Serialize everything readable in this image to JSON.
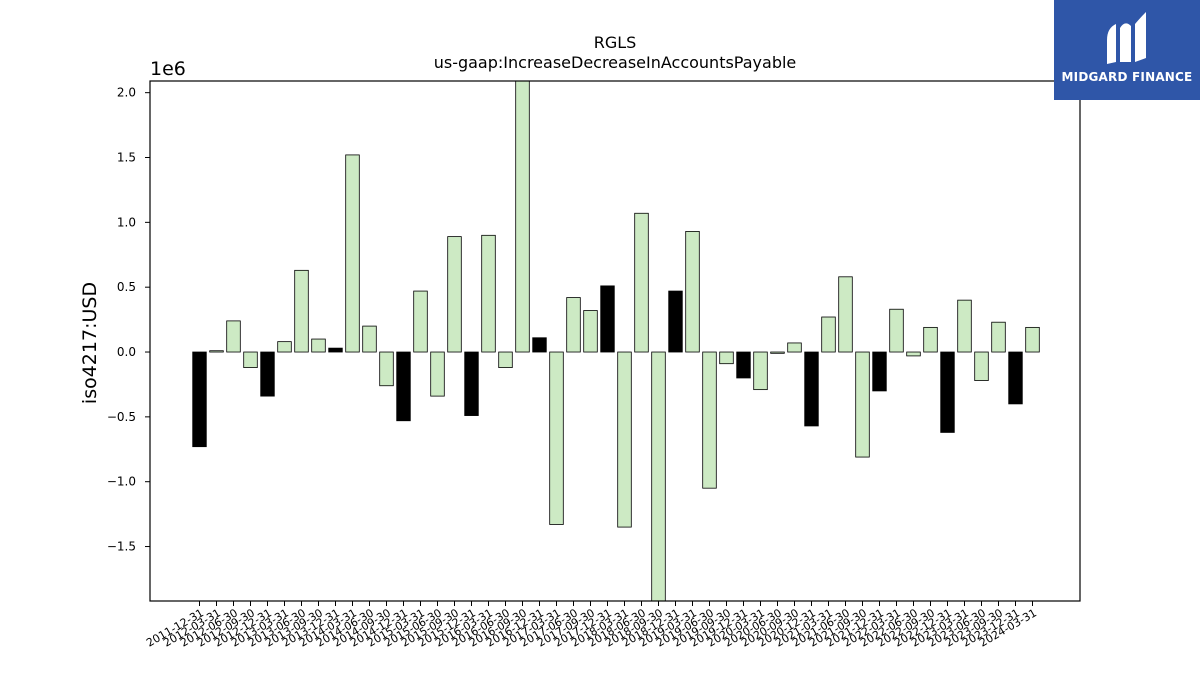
{
  "brand": {
    "name": "MIDGARD FINANCE",
    "logo_icon": "midgard-m-icon",
    "background_color": "#2f56a8"
  },
  "chart_data": {
    "type": "bar",
    "title": "RGLS",
    "subtitle": "us-gaap:IncreaseDecreaseInAccountsPayable",
    "xlabel": "",
    "ylabel": "iso4217:USD",
    "y_scale_label": "1e6",
    "y_scale": 1000000,
    "ylim": [
      -1.92,
      2.09
    ],
    "yticks": [
      -1.5,
      -1.0,
      -0.5,
      0.0,
      0.5,
      1.0,
      1.5,
      2.0
    ],
    "ytick_labels": [
      "−1.5",
      "−1.0",
      "−0.5",
      "0.0",
      "0.5",
      "1.0",
      "1.5",
      "2.0"
    ],
    "grid": false,
    "legend": "none",
    "colors": {
      "light": "#cdeac4",
      "dark": "#000000",
      "edge": "#000000"
    },
    "categories": [
      "2011-12-31",
      "2012-03-31",
      "2012-06-30",
      "2012-09-30",
      "2012-12-31",
      "2013-03-31",
      "2013-06-30",
      "2013-09-30",
      "2013-12-31",
      "2014-03-31",
      "2014-06-30",
      "2014-09-30",
      "2014-12-31",
      "2015-03-31",
      "2015-06-30",
      "2015-09-30",
      "2015-12-31",
      "2016-03-31",
      "2016-06-30",
      "2016-09-30",
      "2016-12-31",
      "2017-03-31",
      "2017-06-30",
      "2017-09-30",
      "2017-12-31",
      "2018-03-31",
      "2018-06-30",
      "2018-09-30",
      "2018-12-31",
      "2019-03-31",
      "2019-06-30",
      "2019-09-30",
      "2019-12-31",
      "2020-03-31",
      "2020-06-30",
      "2020-09-30",
      "2020-12-31",
      "2021-03-31",
      "2021-06-30",
      "2021-09-30",
      "2021-12-31",
      "2022-03-31",
      "2022-06-30",
      "2022-09-30",
      "2022-12-31",
      "2023-03-31",
      "2023-06-30",
      "2023-09-30",
      "2023-12-31",
      "2024-03-31"
    ],
    "values": [
      -0.73,
      0.01,
      0.24,
      -0.12,
      -0.34,
      0.08,
      0.63,
      0.1,
      0.03,
      1.52,
      0.2,
      -0.26,
      -0.53,
      0.47,
      -0.34,
      0.89,
      -0.49,
      0.9,
      -0.12,
      2.09,
      0.11,
      -1.33,
      0.42,
      0.32,
      0.51,
      -1.35,
      1.07,
      -1.92,
      0.47,
      0.93,
      -1.05,
      -0.09,
      -0.2,
      -0.29,
      -0.01,
      0.07,
      -0.57,
      0.27,
      0.58,
      -0.81,
      -0.3,
      0.33,
      -0.03,
      0.19,
      -0.62,
      0.4,
      -0.22,
      0.23,
      -0.4,
      0.19
    ],
    "bar_colors": [
      "dark",
      "light",
      "light",
      "light",
      "dark",
      "light",
      "light",
      "light",
      "dark",
      "light",
      "light",
      "light",
      "dark",
      "light",
      "light",
      "light",
      "dark",
      "light",
      "light",
      "light",
      "dark",
      "light",
      "light",
      "light",
      "dark",
      "light",
      "light",
      "light",
      "dark",
      "light",
      "light",
      "light",
      "dark",
      "light",
      "light",
      "light",
      "dark",
      "light",
      "light",
      "light",
      "dark",
      "light",
      "light",
      "light",
      "dark",
      "light",
      "light",
      "light",
      "dark",
      "light"
    ]
  }
}
